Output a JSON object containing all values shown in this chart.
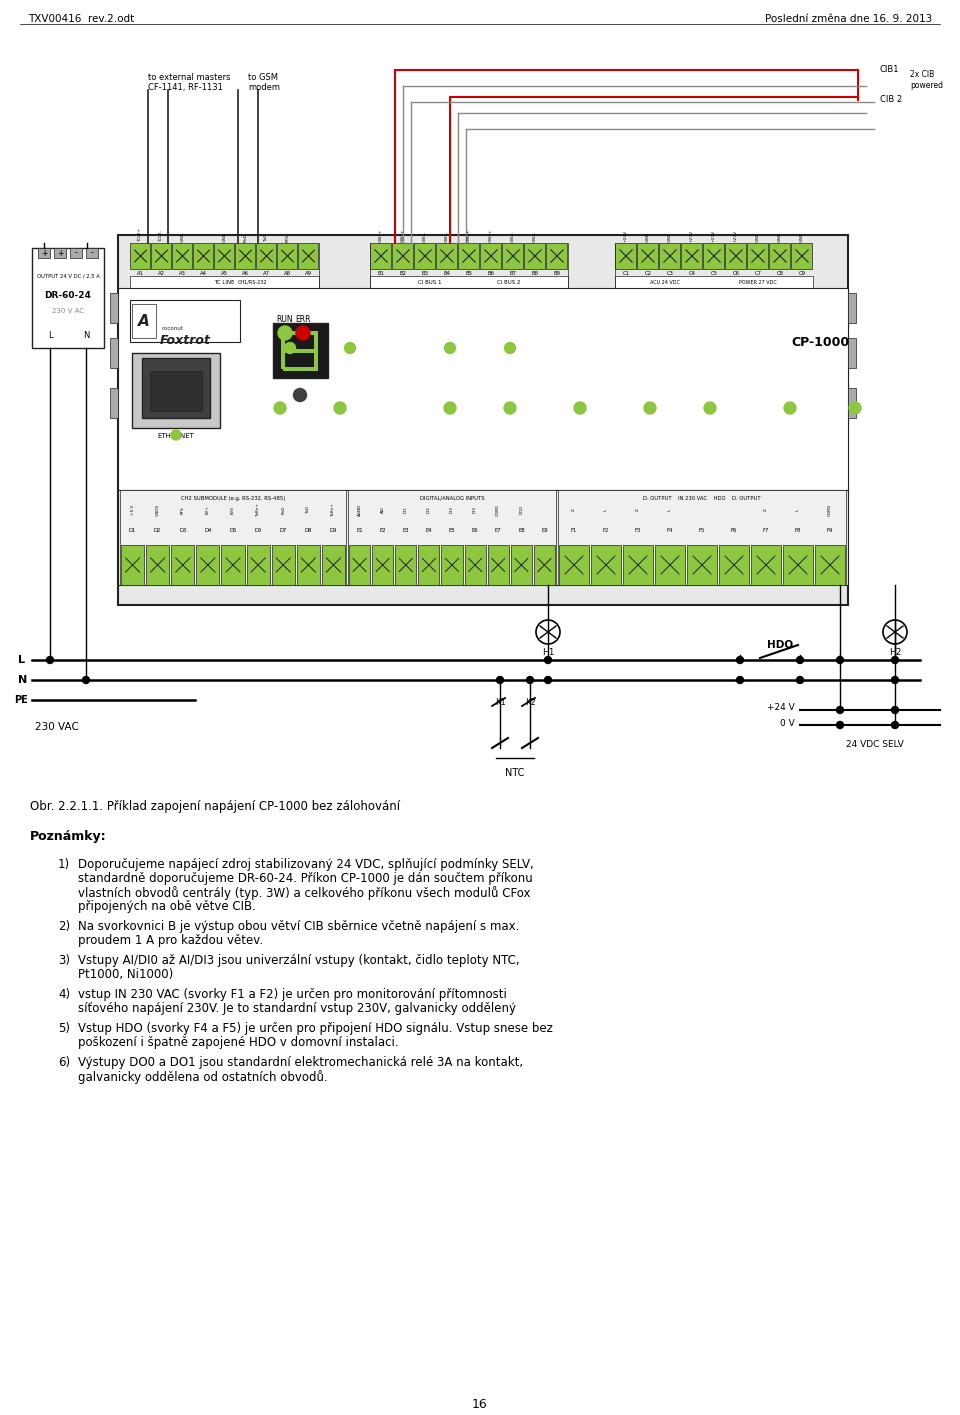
{
  "header_left": "TXV00416  rev.2.odt",
  "header_right": "Poslední změna dne 16. 9. 2013",
  "footer_page": "16",
  "figure_caption": "Obr. 2.2.1.1. Příklad zapojení napájení CP-1000 bez zálohování",
  "notes_title": "Poznámky:",
  "note1": "Doporučujeme napájecí zdroj stabilizovaný 24 VDC, splňující podmínky SELV, standardně doporučujeme DR-60-24. Příkon CP-1000 je dán součtem příkonu vlastních obvodů centrály (typ. 3W) a celkového příkonu všech modulů CFox připojených na obě větve CIB.",
  "note2": "Na svorkovnici B je výstup obou větví CIB sběrnice včetně napájení s max. proudem 1 A pro každou větev.",
  "note3": "Vstupy AI/DI0 až AI/DI3 jsou univerzální vstupy (kontakt, čidlo teploty NTC, Pt1000, Ni1000)",
  "note4": "vstup IN 230 VAC (svorky F1 a F2) je určen pro monitorování přítomnosti síťového napájení 230V. Je to standardní vstup 230V, galvanicky oddělený",
  "note5": "Vstup HDO (svorky F4 a F5) je určen pro připojení HDO signálu. Vstup snese bez poškození i špatně zapojené HDO v domovní instalaci.",
  "note6": "Výstupy DO0 a DO1 jsou standardní elektromechanická relé 3A na kontakt, galvanicky oddělena od ostatních obvodů.",
  "bg_color": "#ffffff",
  "green_color": "#8dc63f",
  "red_color": "#cc0000",
  "dark_color": "#222222",
  "gray_wire": "#888888"
}
